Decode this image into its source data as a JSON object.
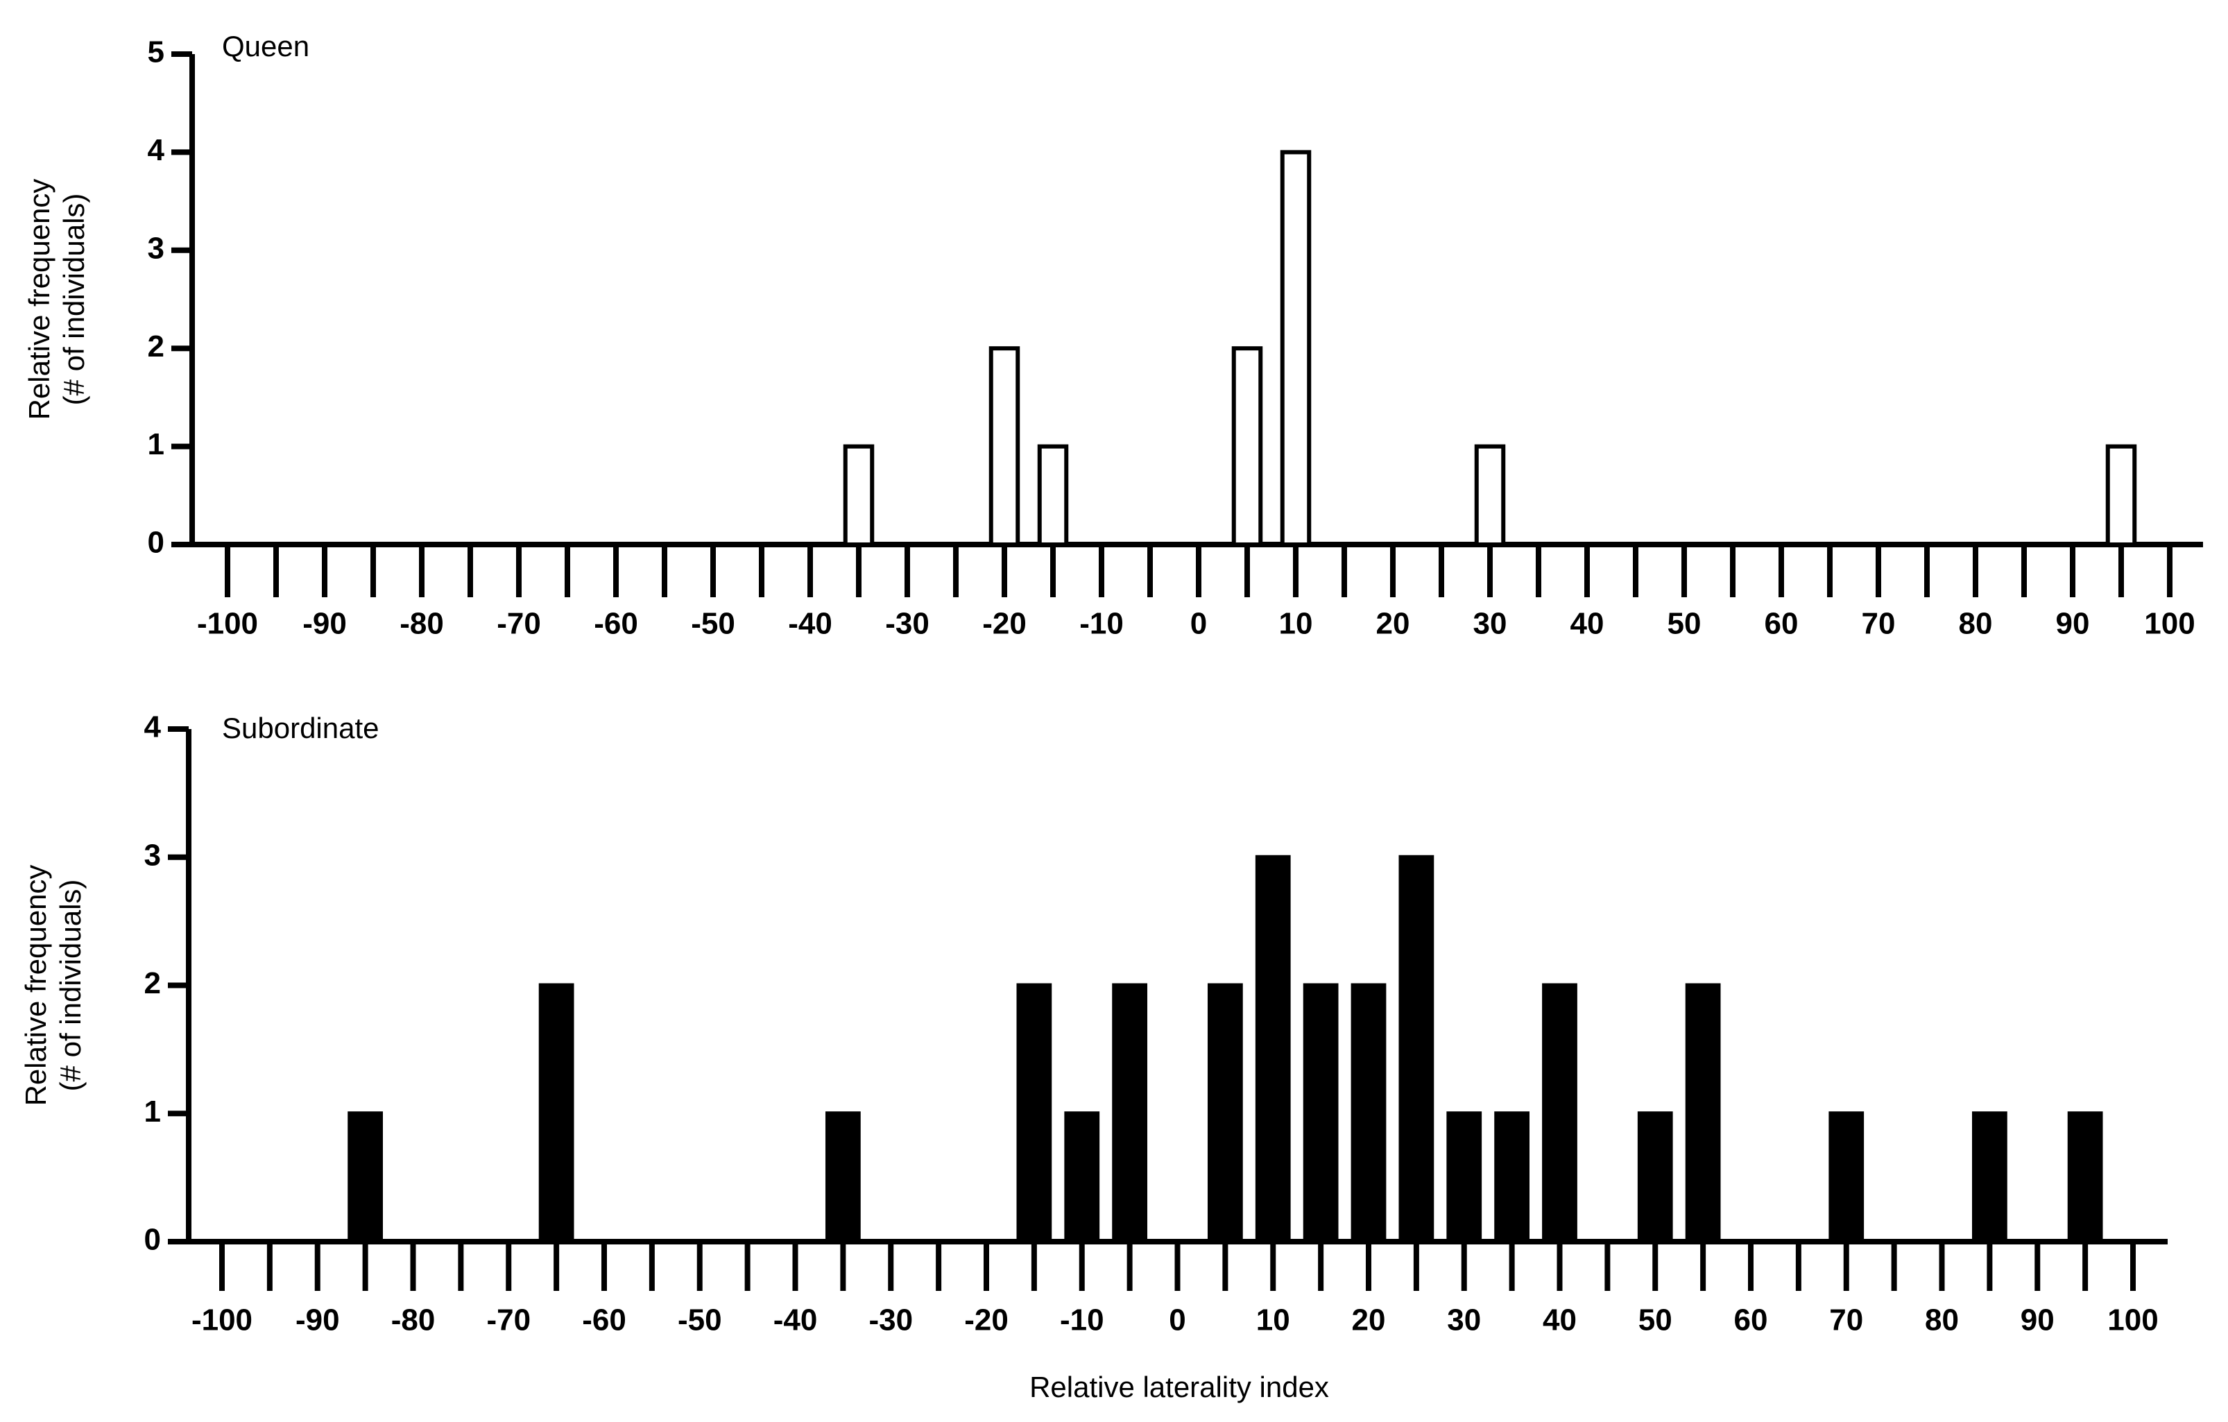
{
  "chart_data": [
    {
      "type": "bar",
      "annotation": "Queen",
      "ylabel": [
        "Relative frequency",
        "(# of individuals)"
      ],
      "categories": [
        "-100",
        null,
        "-90",
        null,
        "-80",
        null,
        "-70",
        null,
        "-60",
        null,
        "-50",
        null,
        "-40",
        null,
        "-30",
        null,
        "-20",
        null,
        "-10",
        null,
        "0",
        null,
        "10",
        null,
        "20",
        null,
        "30",
        null,
        "40",
        null,
        "50",
        null,
        "60",
        null,
        "70",
        null,
        "80",
        null,
        "90",
        null,
        "100"
      ],
      "values": [
        0,
        0,
        0,
        0,
        0,
        0,
        0,
        0,
        0,
        0,
        0,
        0,
        0,
        1,
        0,
        0,
        2,
        1,
        0,
        0,
        0,
        2,
        4,
        0,
        0,
        0,
        1,
        0,
        0,
        0,
        0,
        0,
        0,
        0,
        0,
        0,
        0,
        0,
        0,
        1,
        0
      ],
      "color": "#ffffff",
      "edgecolor": "#000000",
      "ylim": [
        0,
        5
      ],
      "yticks": [
        0,
        1,
        2,
        3,
        4,
        5
      ]
    },
    {
      "type": "bar",
      "annotation": "Subordinate",
      "ylabel": [
        "Relative frequency",
        "(# of individuals)"
      ],
      "xlabel": "Relative laterality index",
      "categories": [
        "-100",
        null,
        "-90",
        null,
        "-80",
        null,
        "-70",
        null,
        "-60",
        null,
        "-50",
        null,
        "-40",
        null,
        "-30",
        null,
        "-20",
        null,
        "-10",
        null,
        "0",
        null,
        "10",
        null,
        "20",
        null,
        "30",
        null,
        "40",
        null,
        "50",
        null,
        "60",
        null,
        "70",
        null,
        "80",
        null,
        "90",
        null,
        "100"
      ],
      "values": [
        0,
        0,
        0,
        1,
        0,
        0,
        0,
        2,
        0,
        0,
        0,
        0,
        0,
        1,
        0,
        0,
        0,
        2,
        1,
        2,
        0,
        2,
        3,
        2,
        2,
        3,
        1,
        1,
        2,
        0,
        1,
        2,
        0,
        0,
        1,
        0,
        0,
        1,
        0,
        1,
        0
      ],
      "color": "#000000",
      "edgecolor": "#000000",
      "ylim": [
        0,
        4
      ],
      "yticks": [
        0,
        1,
        2,
        3,
        4
      ]
    }
  ]
}
